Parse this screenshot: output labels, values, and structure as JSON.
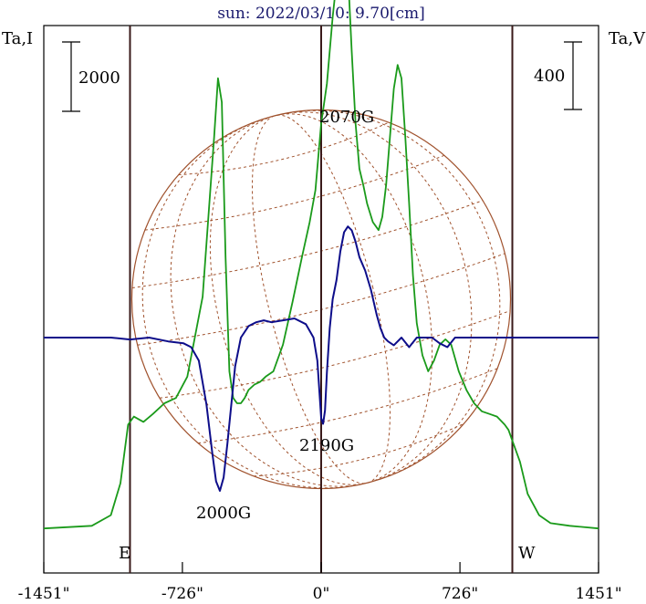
{
  "chart_data": {
    "type": "line",
    "title": "sun: 2022/03/10: 9.70[cm]",
    "ylabel_left": "Ta,I",
    "ylabel_right": "Ta,V",
    "scalebar_left": "2000",
    "scalebar_right": "400",
    "x_ticks": [
      {
        "value": -1451,
        "label": "-1451\""
      },
      {
        "value": -726,
        "label": "-726\""
      },
      {
        "value": 0,
        "label": "0\""
      },
      {
        "value": 726,
        "label": "726\""
      },
      {
        "value": 1451,
        "label": "1451\""
      }
    ],
    "xlim": [
      -1451,
      1451
    ],
    "limb_lines": [
      -1000,
      0,
      1000
    ],
    "limb_labels": {
      "east": "E",
      "west": "W"
    },
    "annotations": [
      {
        "text": "2070G",
        "x": 130
      },
      {
        "text": "2190G",
        "x": 30
      },
      {
        "text": "2000G",
        "x": -480
      }
    ],
    "colors": {
      "intensity": "#1a9a1a",
      "polarization": "#0d0d8a",
      "disk": "#a0522d",
      "limb": "#3a1a1a",
      "title": "#1a1a6e"
    },
    "series": [
      {
        "name": "I",
        "x": [
          -1451,
          -1200,
          -1100,
          -1050,
          -1010,
          -980,
          -930,
          -880,
          -820,
          -760,
          -700,
          -660,
          -620,
          -590,
          -560,
          -540,
          -520,
          -500,
          -480,
          -460,
          -440,
          -420,
          -400,
          -380,
          -350,
          -320,
          -290,
          -250,
          -200,
          -150,
          -100,
          -60,
          -30,
          0,
          30,
          60,
          90,
          110,
          120,
          130,
          140,
          160,
          180,
          200,
          220,
          240,
          270,
          300,
          320,
          340,
          360,
          380,
          400,
          420,
          440,
          460,
          480,
          500,
          530,
          560,
          590,
          620,
          650,
          680,
          720,
          760,
          800,
          840,
          880,
          920,
          960,
          980,
          1000,
          1040,
          1080,
          1140,
          1200,
          1300,
          1451
        ],
        "values": [
          0.03,
          0.04,
          0.08,
          0.2,
          0.42,
          0.45,
          0.43,
          0.46,
          0.5,
          0.52,
          0.6,
          0.75,
          0.9,
          1.2,
          1.5,
          1.72,
          1.63,
          1.05,
          0.62,
          0.52,
          0.5,
          0.5,
          0.52,
          0.55,
          0.57,
          0.58,
          0.6,
          0.62,
          0.72,
          0.88,
          1.05,
          1.18,
          1.3,
          1.55,
          1.7,
          1.95,
          2.15,
          2.27,
          2.28,
          2.24,
          2.12,
          1.82,
          1.55,
          1.38,
          1.32,
          1.25,
          1.18,
          1.15,
          1.2,
          1.32,
          1.5,
          1.68,
          1.77,
          1.72,
          1.5,
          1.25,
          0.98,
          0.8,
          0.68,
          0.62,
          0.66,
          0.72,
          0.74,
          0.72,
          0.62,
          0.55,
          0.5,
          0.47,
          0.46,
          0.45,
          0.42,
          0.4,
          0.36,
          0.28,
          0.16,
          0.08,
          0.05,
          0.04,
          0.03
        ]
      },
      {
        "name": "V",
        "x": [
          -1451,
          -1100,
          -1000,
          -900,
          -800,
          -720,
          -680,
          -640,
          -600,
          -570,
          -550,
          -530,
          -510,
          -490,
          -470,
          -450,
          -420,
          -380,
          -340,
          -300,
          -260,
          -200,
          -140,
          -80,
          -40,
          -20,
          0,
          10,
          20,
          30,
          45,
          60,
          80,
          100,
          120,
          140,
          160,
          180,
          200,
          230,
          260,
          290,
          310,
          330,
          350,
          380,
          420,
          460,
          500,
          540,
          580,
          620,
          660,
          700,
          750,
          800,
          860,
          920,
          1000,
          1100,
          1451
        ],
        "values": [
          0.0,
          0.0,
          -0.01,
          0.0,
          -0.02,
          -0.03,
          -0.05,
          -0.12,
          -0.35,
          -0.6,
          -0.75,
          -0.8,
          -0.73,
          -0.55,
          -0.35,
          -0.15,
          0.0,
          0.06,
          0.08,
          0.09,
          0.08,
          0.09,
          0.1,
          0.07,
          0.0,
          -0.12,
          -0.42,
          -0.45,
          -0.38,
          -0.18,
          0.05,
          0.2,
          0.3,
          0.45,
          0.55,
          0.58,
          0.56,
          0.5,
          0.42,
          0.35,
          0.25,
          0.12,
          0.05,
          0.0,
          -0.02,
          -0.04,
          0.0,
          -0.05,
          0.0,
          0.0,
          0.0,
          -0.03,
          -0.05,
          0.0,
          0.0,
          0.0,
          0.0,
          0.0,
          0.0,
          0.0,
          0.0
        ]
      }
    ]
  }
}
